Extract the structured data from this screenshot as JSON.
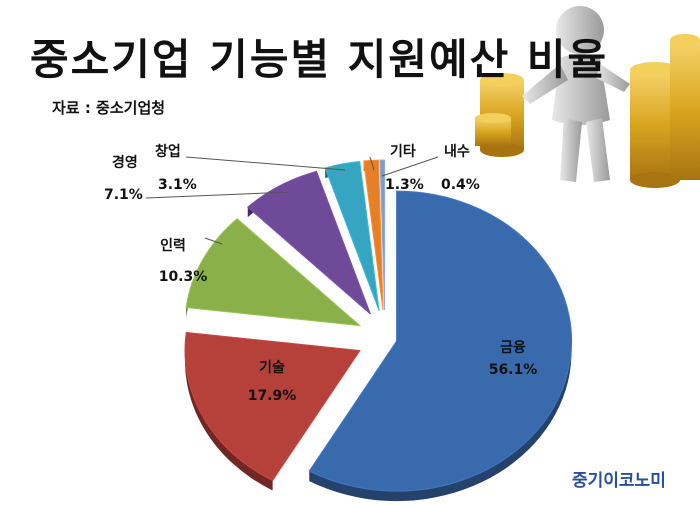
{
  "title": "중소기업 기능별 지원예산 비율",
  "source": "자료 : 중소기업청",
  "brand": "중기이코노미",
  "colors": {
    "금융": "#3a6aae",
    "기술": "#b6403a",
    "인력": "#8ab04a",
    "경영": "#6f4a99",
    "창업": "#35a5c2",
    "기타": "#e57f28",
    "내수": "#7f9cc7"
  },
  "chart_data": {
    "type": "pie",
    "title": "중소기업 기능별 지원예산 비율",
    "subtitle": "자료 : 중소기업청",
    "slices": [
      {
        "label": "금융",
        "value": 56.1,
        "value_label": "56.1%"
      },
      {
        "label": "기술",
        "value": 17.9,
        "value_label": "17.9%"
      },
      {
        "label": "인력",
        "value": 10.3,
        "value_label": "10.3%"
      },
      {
        "label": "경영",
        "value": 7.1,
        "value_label": "7.1%"
      },
      {
        "label": "창업",
        "value": 3.1,
        "value_label": "3.1%"
      },
      {
        "label": "기타",
        "value": 1.3,
        "value_label": "1.3%"
      },
      {
        "label": "내수",
        "value": 0.4,
        "value_label": "0.4%"
      }
    ],
    "exploded": true,
    "legend": "none"
  }
}
